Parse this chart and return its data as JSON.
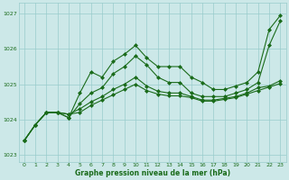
{
  "xlabel": "Graphe pression niveau de la mer (hPa)",
  "ylim": [
    1022.8,
    1027.3
  ],
  "xlim": [
    -0.5,
    23.5
  ],
  "yticks": [
    1023,
    1024,
    1025,
    1026,
    1027
  ],
  "xticks": [
    0,
    1,
    2,
    3,
    4,
    5,
    6,
    7,
    8,
    9,
    10,
    11,
    12,
    13,
    14,
    15,
    16,
    17,
    18,
    19,
    20,
    21,
    22,
    23
  ],
  "bg_color": "#cce8e8",
  "grid_color": "#99cccc",
  "line_color": "#1a6b1a",
  "lines": [
    {
      "x": [
        0,
        1,
        2,
        3,
        4,
        5,
        6,
        7,
        8,
        9,
        10,
        11,
        12,
        13,
        14,
        15,
        16,
        17,
        18,
        19,
        20,
        21,
        22,
        23
      ],
      "y": [
        1023.4,
        1023.85,
        1024.2,
        1024.2,
        1024.05,
        1024.75,
        1025.35,
        1025.2,
        1025.65,
        1025.85,
        1026.1,
        1025.75,
        1025.5,
        1025.5,
        1025.5,
        1025.2,
        1025.05,
        1024.85,
        1024.85,
        1024.95,
        1025.05,
        1025.35,
        1026.55,
        1026.95
      ]
    },
    {
      "x": [
        0,
        1,
        2,
        3,
        4,
        5,
        6,
        7,
        8,
        9,
        10,
        11,
        12,
        13,
        14,
        15,
        16,
        17,
        18,
        19,
        20,
        21,
        22,
        23
      ],
      "y": [
        1023.4,
        1023.85,
        1024.2,
        1024.2,
        1024.05,
        1024.45,
        1024.75,
        1024.9,
        1025.3,
        1025.5,
        1025.8,
        1025.55,
        1025.2,
        1025.05,
        1025.05,
        1024.75,
        1024.65,
        1024.65,
        1024.65,
        1024.75,
        1024.85,
        1025.05,
        1026.1,
        1026.8
      ]
    },
    {
      "x": [
        0,
        1,
        2,
        3,
        4,
        5,
        6,
        7,
        8,
        9,
        10,
        11,
        12,
        13,
        14,
        15,
        16,
        17,
        18,
        19,
        20,
        21,
        22,
        23
      ],
      "y": [
        1023.4,
        1023.85,
        1024.2,
        1024.2,
        1024.15,
        1024.3,
        1024.5,
        1024.65,
        1024.85,
        1025.0,
        1025.2,
        1024.95,
        1024.8,
        1024.75,
        1024.75,
        1024.65,
        1024.55,
        1024.55,
        1024.6,
        1024.65,
        1024.75,
        1024.9,
        1024.95,
        1025.1
      ]
    },
    {
      "x": [
        0,
        1,
        2,
        3,
        4,
        5,
        6,
        7,
        8,
        9,
        10,
        11,
        12,
        13,
        14,
        15,
        16,
        17,
        18,
        19,
        20,
        21,
        22,
        23
      ],
      "y": [
        1023.4,
        1023.85,
        1024.2,
        1024.2,
        1024.15,
        1024.2,
        1024.4,
        1024.55,
        1024.7,
        1024.85,
        1025.0,
        1024.82,
        1024.72,
        1024.67,
        1024.67,
        1024.62,
        1024.52,
        1024.52,
        1024.57,
        1024.62,
        1024.72,
        1024.82,
        1024.92,
        1025.02
      ]
    }
  ]
}
